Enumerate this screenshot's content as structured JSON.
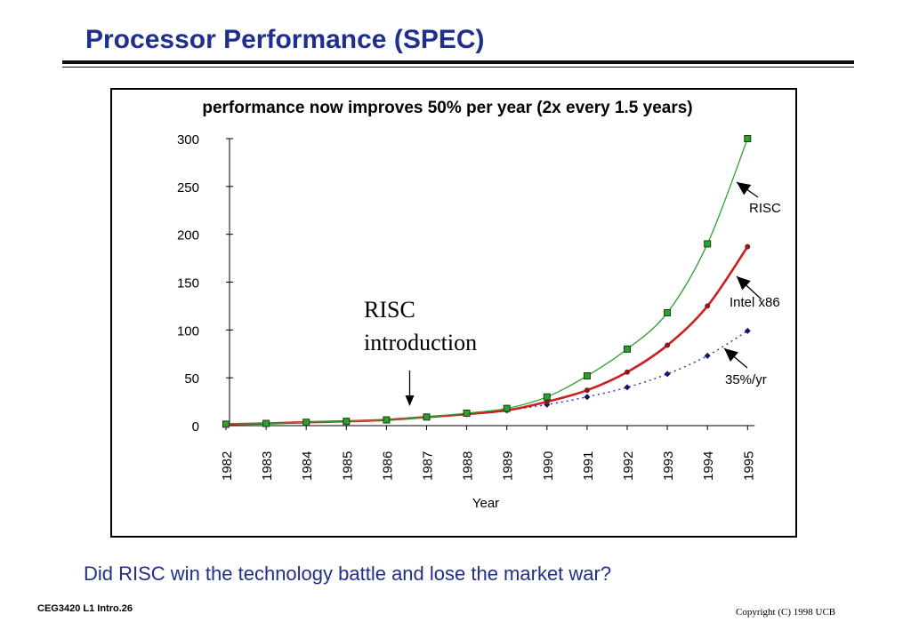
{
  "slide": {
    "title": "Processor Performance (SPEC)",
    "question": "Did RISC win the technology battle and lose the market war?",
    "footer_left": "CEG3420  L1 Intro.26",
    "footer_right": "Copyright (C) 1998 UCB"
  },
  "colors": {
    "title": "#1f2f8c",
    "risc_line": "#2ca02c",
    "risc_marker": "#2ca02c",
    "intel_line": "#cc1f1f",
    "intel_marker": "#8b1a1a",
    "trend_line": "#1f2fbf",
    "trend_marker": "#14146e"
  },
  "chart_data": {
    "type": "line",
    "title": "performance now improves  50% per year (2x every 1.5 years)",
    "xlabel": "Year",
    "ylabel": "",
    "x": [
      "1982",
      "1983",
      "1984",
      "1985",
      "1986",
      "1987",
      "1988",
      "1989",
      "1990",
      "1991",
      "1992",
      "1993",
      "1994",
      "1995"
    ],
    "ylim": [
      0,
      300
    ],
    "yticks": [
      0,
      50,
      100,
      150,
      200,
      250,
      300
    ],
    "grid": false,
    "series": [
      {
        "key": "risc",
        "name": "RISC",
        "style": "solid-thin",
        "values": [
          1.5,
          2.3,
          3.5,
          4.5,
          6,
          9,
          13,
          18,
          30,
          52,
          80,
          118,
          190,
          300
        ]
      },
      {
        "key": "intel",
        "name": "Intel x86",
        "style": "solid-thick",
        "values": [
          1.5,
          2.3,
          3.5,
          4.5,
          6,
          9,
          12,
          16,
          25,
          37,
          56,
          84,
          125,
          187
        ]
      },
      {
        "key": "trend",
        "name": "35%/yr",
        "style": "dotted",
        "values": [
          1.5,
          2.2,
          3.3,
          4.5,
          6,
          9,
          12,
          16,
          22,
          30,
          40,
          54,
          73,
          99
        ]
      }
    ],
    "annotations": {
      "risc_intro": [
        "RISC",
        "introduction"
      ],
      "risc_intro_year": "1987"
    }
  }
}
